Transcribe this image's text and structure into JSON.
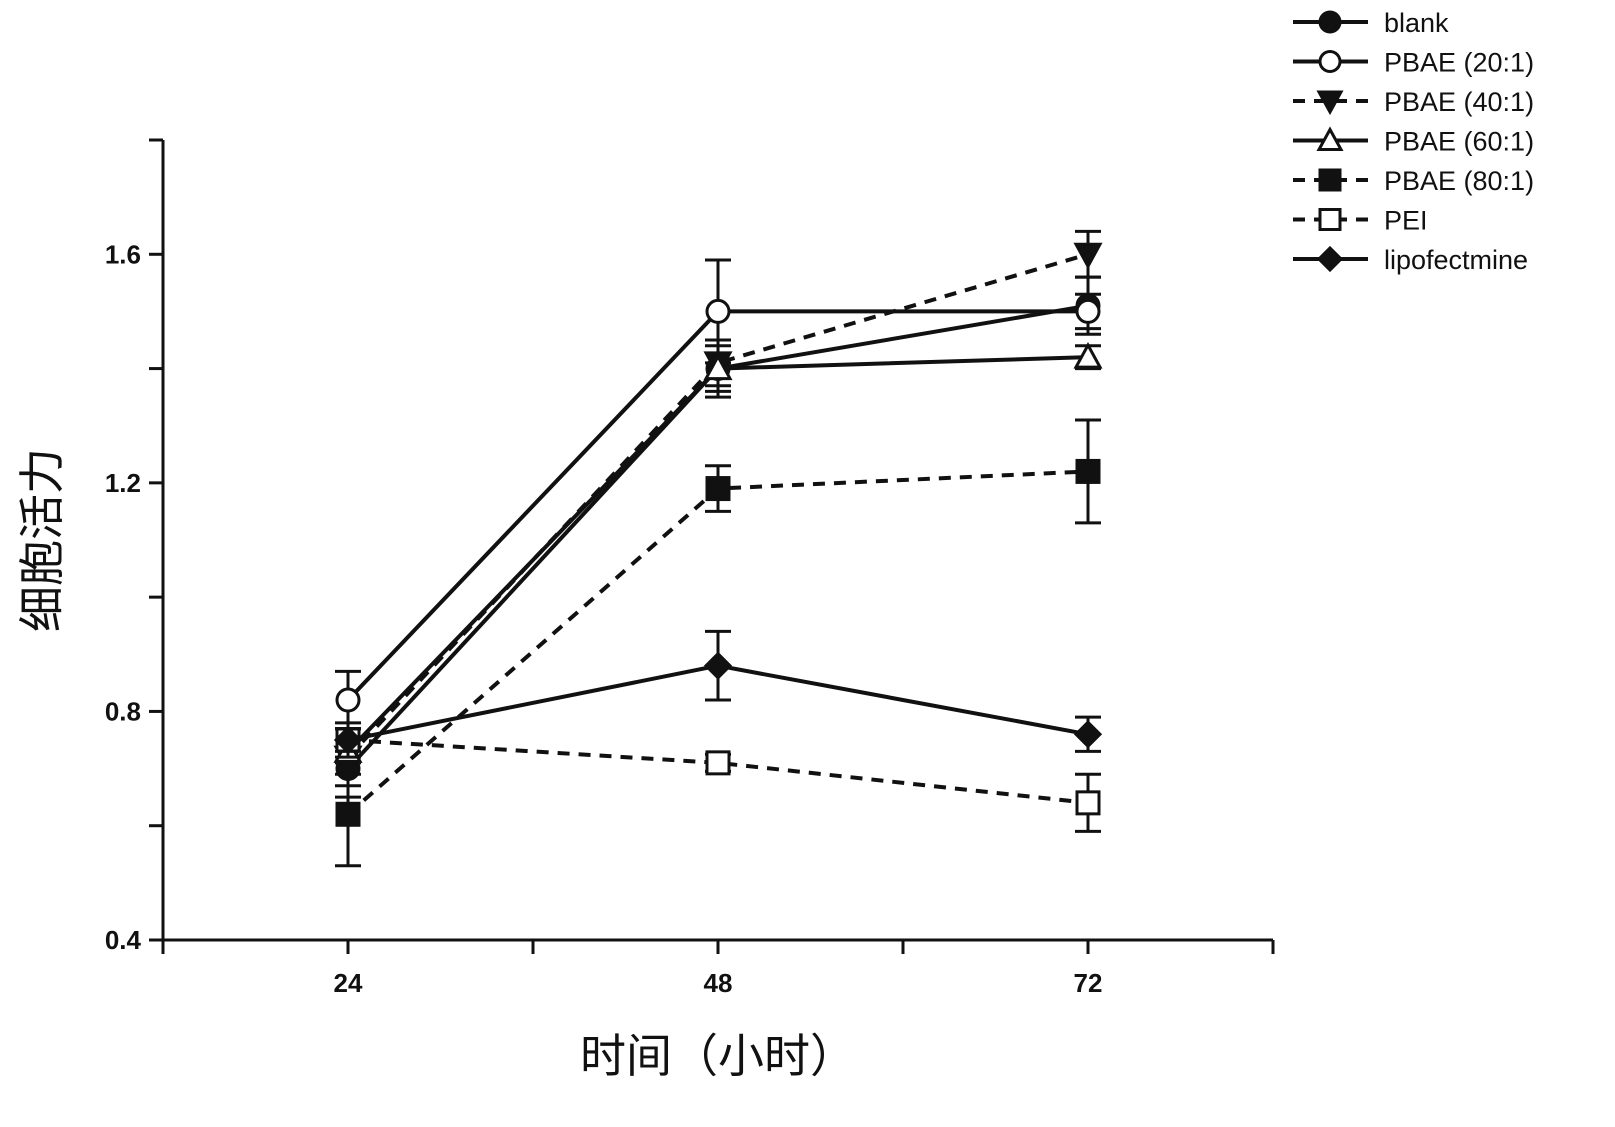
{
  "chart_data": {
    "type": "line",
    "xlabel": "时间（小时）",
    "ylabel": "细胞活力",
    "x": [
      24,
      48,
      72
    ],
    "xlim": [
      12,
      84
    ],
    "x_ticks": [
      24,
      48,
      72
    ],
    "ylim": [
      0.4,
      1.8
    ],
    "y_ticks": [
      0.4,
      0.8,
      1.2,
      1.6
    ],
    "y_tick_labels": [
      "0.4",
      "0.8",
      "1.2",
      "1.6"
    ],
    "legend_position": "top-right",
    "grid": false,
    "series": [
      {
        "name": "blank",
        "marker": "circle-filled",
        "dashed": false,
        "values": [
          0.7,
          1.4,
          1.51
        ],
        "errors": [
          0.05,
          0.05,
          0.05
        ]
      },
      {
        "name": "PBAE (20:1)",
        "marker": "circle-open",
        "dashed": false,
        "values": [
          0.82,
          1.5,
          1.5
        ],
        "errors": [
          0.05,
          0.09,
          0.03
        ]
      },
      {
        "name": "PBAE (40:1)",
        "marker": "triangle-down-filled",
        "dashed": true,
        "values": [
          0.72,
          1.41,
          1.6
        ],
        "errors": [
          0.05,
          0.04,
          0.04
        ]
      },
      {
        "name": "PBAE (60:1)",
        "marker": "triangle-up-open",
        "dashed": false,
        "values": [
          0.73,
          1.4,
          1.42
        ],
        "errors": [
          0.04,
          0.04,
          0.02
        ]
      },
      {
        "name": "PBAE (80:1)",
        "marker": "square-filled",
        "dashed": true,
        "values": [
          0.62,
          1.19,
          1.22
        ],
        "errors": [
          0.09,
          0.04,
          0.09
        ]
      },
      {
        "name": "PEI",
        "marker": "square-open",
        "dashed": true,
        "values": [
          0.75,
          0.71,
          0.64
        ],
        "errors": [
          0.02,
          0.015,
          0.05
        ]
      },
      {
        "name": "lipofectmine",
        "marker": "diamond-filled",
        "dashed": false,
        "values": [
          0.75,
          0.88,
          0.76
        ],
        "errors": [
          0.03,
          0.06,
          0.03
        ]
      }
    ]
  }
}
